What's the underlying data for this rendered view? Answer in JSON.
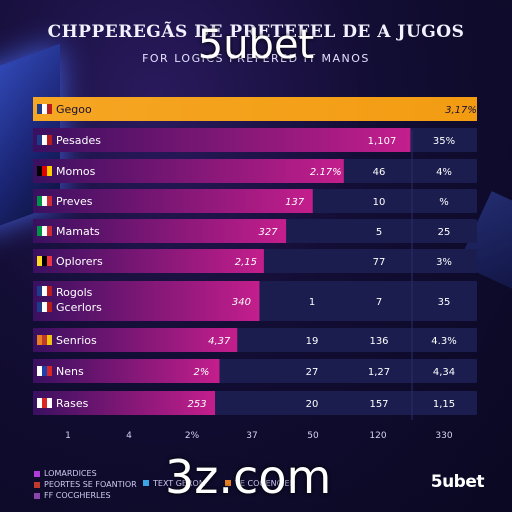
{
  "header": {
    "title": "CHPPEREGÃS DE PRETEFEL DE A JUGOS",
    "subtitle": "FOR LOGICS PREFERED IT MANOS",
    "watermark": "5ubet"
  },
  "footer": {
    "domain": "3z.com",
    "brand": "5ubet",
    "legend": [
      {
        "label": "LOMARDICES",
        "color": "#b03bd8"
      },
      {
        "label": "PEORTES SE FOANTIOR",
        "color": "#c0392b"
      },
      {
        "label": "FF COCGHERLES",
        "color": "#8e44ad"
      },
      {
        "label": "TEXT GEROM",
        "color": "#3ba3e6"
      },
      {
        "label": "TE COGENCIER",
        "color": "#e67e22"
      }
    ]
  },
  "colors": {
    "highlight": "#f39c12",
    "bar": "#b0238e",
    "track": "#1b1d4f"
  },
  "chart_data": {
    "type": "bar",
    "orientation": "horizontal",
    "rows": [
      {
        "label": "Gegoo",
        "flag": [
          "#1e3a8a",
          "#ffffff",
          "#b91c1c"
        ],
        "value": 100,
        "bar_label": "3,17%",
        "col2": "",
        "col3": "",
        "highlight": true
      },
      {
        "label": "Pesades",
        "flag": [
          "#1e3a8a",
          "#ffffff",
          "#b91c1c"
        ],
        "value": 85,
        "bar_label": "",
        "col1": "1,107",
        "col2": "",
        "col3": "35%"
      },
      {
        "label": "Momos",
        "flag": [
          "#000000",
          "#dd0000",
          "#ffce00"
        ],
        "value": 70,
        "bar_label": "2.17%",
        "col2": "46",
        "col3": "4%"
      },
      {
        "label": "Preves",
        "flag": [
          "#009246",
          "#ffffff",
          "#ce2b37"
        ],
        "value": 63,
        "bar_label": "137",
        "col2": "10",
        "col3": "%"
      },
      {
        "label": "Mamats",
        "flag": [
          "#009246",
          "#ffffff",
          "#ce2b37"
        ],
        "value": 57,
        "bar_label": "327",
        "col2": "5",
        "col3": "25"
      },
      {
        "label": "Oplorers",
        "flag": [
          "#fdda24",
          "#000000",
          "#ef3340"
        ],
        "value": 52,
        "bar_label": "2,15",
        "col2": "77",
        "col3": "3%"
      },
      {
        "label": "Rogols",
        "label2": "Gcerlors",
        "flag": [
          "#1e3a8a",
          "#ffffff",
          "#b91c1c"
        ],
        "value": 51,
        "bar_label": "340",
        "col1": "1",
        "col2": "7",
        "col3": "35",
        "double": true
      },
      {
        "label": "Senrios",
        "flag": [
          "#e67e22",
          "#c0392b",
          "#f1c40f"
        ],
        "value": 46,
        "bar_label": "4,37",
        "col1": "19",
        "col2": "136",
        "col3": "4.3%"
      },
      {
        "label": "Nens",
        "flag": [
          "#ffffff",
          "#1e40af",
          "#dc2626"
        ],
        "value": 42,
        "bar_label": "2%",
        "col1": "27",
        "col2": "1,27",
        "col3": "4,34"
      },
      {
        "label": "Rases",
        "flag": [
          "#ffffff",
          "#dc2626",
          "#ffffff"
        ],
        "value": 41,
        "bar_label": "253",
        "col1": "20",
        "col2": "157",
        "col3": "1,15"
      }
    ],
    "x_ticks": [
      "1",
      "4",
      "2%",
      "37",
      "50",
      "120",
      "330"
    ]
  }
}
